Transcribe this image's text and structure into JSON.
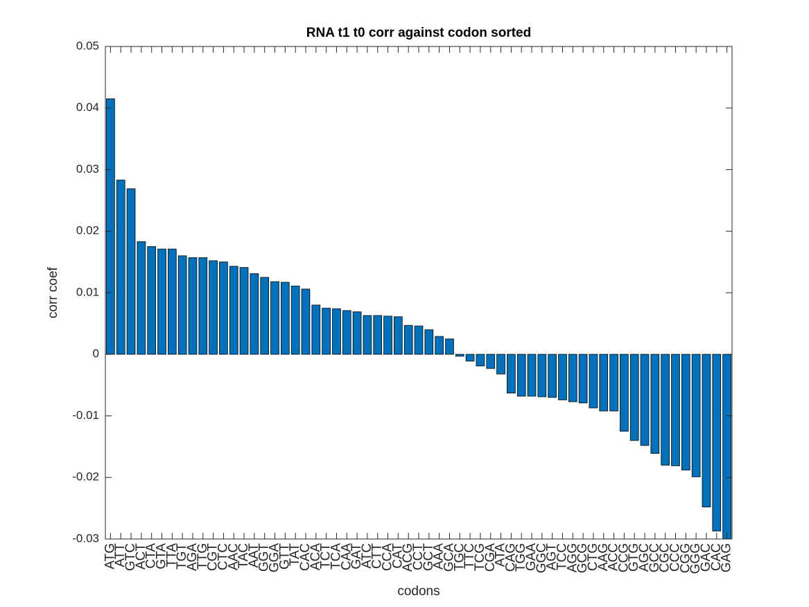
{
  "chart_data": {
    "type": "bar",
    "title": "RNA t1 t0 corr against codon sorted",
    "x_label": "codons",
    "y_label": "corr coef",
    "color": "#0072BD",
    "categories": [
      "ATG",
      "ATT",
      "GTC",
      "ACT",
      "CTA",
      "GTA",
      "TTA",
      "TGT",
      "AGA",
      "TTG",
      "CGT",
      "CTC",
      "AAC",
      "TAC",
      "AAT",
      "GGT",
      "GGA",
      "GTT",
      "TAT",
      "CAC",
      "ACA",
      "TCT",
      "TCA",
      "CAA",
      "GAT",
      "ATC",
      "CTT",
      "CCA",
      "CAT",
      "ACG",
      "CCT",
      "GCT",
      "AAA",
      "GCA",
      "TGC",
      "TTC",
      "TCG",
      "CGA",
      "ATA",
      "CAG",
      "TGG",
      "GAA",
      "GGC",
      "AGT",
      "TCC",
      "AGG",
      "GCG",
      "CTG",
      "AAG",
      "ACC",
      "CCG",
      "GTG",
      "AGC",
      "GCC",
      "CGC",
      "CCC",
      "CGG",
      "GGG",
      "GAC",
      "CAC",
      "GAG"
    ],
    "values": [
      0.0415,
      0.0283,
      0.0269,
      0.0183,
      0.0175,
      0.0171,
      0.0171,
      0.016,
      0.0157,
      0.0157,
      0.0152,
      0.015,
      0.0143,
      0.0141,
      0.0131,
      0.0125,
      0.0118,
      0.0117,
      0.0111,
      0.0106,
      0.008,
      0.0075,
      0.0074,
      0.0071,
      0.0069,
      0.0063,
      0.0063,
      0.0062,
      0.0061,
      0.0047,
      0.0046,
      0.004,
      0.0029,
      0.0025,
      -0.0003,
      -0.0011,
      -0.0019,
      -0.0023,
      -0.0032,
      -0.0063,
      -0.0068,
      -0.0068,
      -0.0069,
      -0.007,
      -0.0074,
      -0.0077,
      -0.0079,
      -0.0087,
      -0.0092,
      -0.0092,
      -0.0125,
      -0.014,
      -0.0148,
      -0.0161,
      -0.018,
      -0.0181,
      -0.0188,
      -0.0199,
      -0.0248,
      -0.0287,
      -0.03
    ],
    "ylim": [
      -0.03,
      0.05
    ],
    "yticks": [
      -0.03,
      -0.02,
      -0.01,
      0,
      0.01,
      0.02,
      0.03,
      0.04,
      0.05
    ]
  }
}
